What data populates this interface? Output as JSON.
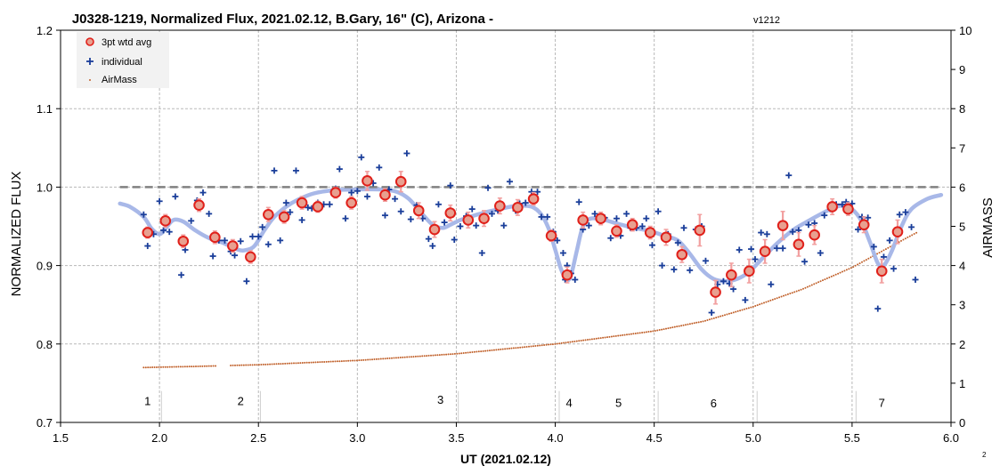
{
  "chart_data": {
    "type": "scatter",
    "title": "J0328-1219, Normalized Flux, 2021.02.12, B.Gary, 16\" (C), Arizona - ",
    "title_version": "v1212",
    "xlabel": "UT (2021.02.12)",
    "ylabel": "NORMALIZED FLUX",
    "y2label": "AIRMASS",
    "xlim": [
      1.5,
      6.0
    ],
    "ylim": [
      0.7,
      1.2
    ],
    "y2lim": [
      0,
      10
    ],
    "x_ticks": [
      "1.5",
      "2.0",
      "2.5",
      "3.0",
      "3.5",
      "4.0",
      "4.5",
      "5.0",
      "5.5",
      "6.0"
    ],
    "y_ticks": [
      "0.7",
      "0.8",
      "0.9",
      "1.0",
      "1.1",
      "1.2"
    ],
    "y2_ticks": [
      "0",
      "1",
      "2",
      "3",
      "4",
      "5",
      "6",
      "7",
      "8",
      "9",
      "10"
    ],
    "grid": true,
    "legend_position": "top-left",
    "colors": {
      "avg_fill": "#e8a090",
      "avg_edge": "#e0201a",
      "errbar": "#f2a0a0",
      "individual": "#1a3e9a",
      "airmass": "#c0602a",
      "model": "#a8b8e8",
      "reference": "#808080",
      "grid": "#b8b8b8"
    },
    "reference_line": {
      "y": 1.0,
      "x_range": [
        1.8,
        5.95
      ]
    },
    "annotations": [
      {
        "text": "1",
        "x": 1.94,
        "y": 0.722
      },
      {
        "text": "2",
        "x": 2.41,
        "y": 0.722
      },
      {
        "text": "3",
        "x": 3.42,
        "y": 0.724
      },
      {
        "text": "4",
        "x": 4.07,
        "y": 0.72
      },
      {
        "text": "5",
        "x": 4.32,
        "y": 0.72
      },
      {
        "text": "6",
        "x": 4.8,
        "y": 0.719
      },
      {
        "text": "7",
        "x": 5.65,
        "y": 0.72
      }
    ],
    "event_lines_x": [
      2.01,
      2.51,
      3.51,
      4.02,
      4.52,
      5.02,
      5.52
    ],
    "series": [
      {
        "name": "3pt wtd avg",
        "points": [
          [
            1.94,
            0.942,
            0.007
          ],
          [
            2.03,
            0.957,
            0.008
          ],
          [
            2.12,
            0.931,
            0.008
          ],
          [
            2.2,
            0.977,
            0.008
          ],
          [
            2.28,
            0.936,
            0.008
          ],
          [
            2.37,
            0.925,
            0.008
          ],
          [
            2.46,
            0.911,
            0.008
          ],
          [
            2.55,
            0.965,
            0.009
          ],
          [
            2.63,
            0.962,
            0.008
          ],
          [
            2.72,
            0.98,
            0.008
          ],
          [
            2.8,
            0.975,
            0.007
          ],
          [
            2.89,
            0.993,
            0.007
          ],
          [
            2.97,
            0.98,
            0.008
          ],
          [
            3.05,
            1.008,
            0.012
          ],
          [
            3.14,
            0.99,
            0.008
          ],
          [
            3.22,
            1.007,
            0.013
          ],
          [
            3.31,
            0.97,
            0.01
          ],
          [
            3.39,
            0.946,
            0.01
          ],
          [
            3.47,
            0.967,
            0.01
          ],
          [
            3.56,
            0.958,
            0.01
          ],
          [
            3.64,
            0.96,
            0.01
          ],
          [
            3.72,
            0.976,
            0.01
          ],
          [
            3.81,
            0.974,
            0.01
          ],
          [
            3.89,
            0.985,
            0.008
          ],
          [
            3.98,
            0.938,
            0.007
          ],
          [
            4.06,
            0.888,
            0.01
          ],
          [
            4.14,
            0.958,
            0.01
          ],
          [
            4.23,
            0.96,
            0.008
          ],
          [
            4.31,
            0.944,
            0.008
          ],
          [
            4.39,
            0.952,
            0.008
          ],
          [
            4.48,
            0.942,
            0.008
          ],
          [
            4.56,
            0.936,
            0.01
          ],
          [
            4.64,
            0.914,
            0.01
          ],
          [
            4.73,
            0.945,
            0.02
          ],
          [
            4.81,
            0.866,
            0.015
          ],
          [
            4.89,
            0.888,
            0.015
          ],
          [
            4.98,
            0.893,
            0.015
          ],
          [
            5.06,
            0.918,
            0.015
          ],
          [
            5.15,
            0.951,
            0.018
          ],
          [
            5.23,
            0.927,
            0.015
          ],
          [
            5.31,
            0.939,
            0.012
          ],
          [
            5.4,
            0.975,
            0.01
          ],
          [
            5.48,
            0.972,
            0.008
          ],
          [
            5.56,
            0.952,
            0.01
          ],
          [
            5.65,
            0.893,
            0.015
          ],
          [
            5.73,
            0.943,
            0.015
          ]
        ]
      },
      {
        "name": "individual",
        "points": [
          [
            1.92,
            0.965
          ],
          [
            1.94,
            0.925
          ],
          [
            1.97,
            0.94
          ],
          [
            2.0,
            0.982
          ],
          [
            2.02,
            0.945
          ],
          [
            2.05,
            0.943
          ],
          [
            2.08,
            0.988
          ],
          [
            2.11,
            0.888
          ],
          [
            2.13,
            0.92
          ],
          [
            2.16,
            0.957
          ],
          [
            2.19,
            0.983
          ],
          [
            2.22,
            0.993
          ],
          [
            2.25,
            0.966
          ],
          [
            2.27,
            0.912
          ],
          [
            2.3,
            0.932
          ],
          [
            2.33,
            0.932
          ],
          [
            2.36,
            0.918
          ],
          [
            2.38,
            0.913
          ],
          [
            2.41,
            0.931
          ],
          [
            2.44,
            0.88
          ],
          [
            2.47,
            0.937
          ],
          [
            2.5,
            0.937
          ],
          [
            2.52,
            0.949
          ],
          [
            2.55,
            0.927
          ],
          [
            2.58,
            1.021
          ],
          [
            2.61,
            0.932
          ],
          [
            2.64,
            0.98
          ],
          [
            2.66,
            0.968
          ],
          [
            2.69,
            1.021
          ],
          [
            2.72,
            0.958
          ],
          [
            2.75,
            0.974
          ],
          [
            2.77,
            0.973
          ],
          [
            2.8,
            0.98
          ],
          [
            2.83,
            0.978
          ],
          [
            2.86,
            0.978
          ],
          [
            2.89,
            0.998
          ],
          [
            2.91,
            1.023
          ],
          [
            2.94,
            0.96
          ],
          [
            2.97,
            0.993
          ],
          [
            3.0,
            0.995
          ],
          [
            3.02,
            1.038
          ],
          [
            3.05,
            0.988
          ],
          [
            3.08,
            1.005
          ],
          [
            3.11,
            1.025
          ],
          [
            3.14,
            0.964
          ],
          [
            3.16,
            0.997
          ],
          [
            3.19,
            0.985
          ],
          [
            3.22,
            0.969
          ],
          [
            3.25,
            1.043
          ],
          [
            3.27,
            0.959
          ],
          [
            3.3,
            0.977
          ],
          [
            3.33,
            0.96
          ],
          [
            3.36,
            0.934
          ],
          [
            3.38,
            0.925
          ],
          [
            3.41,
            0.978
          ],
          [
            3.44,
            0.955
          ],
          [
            3.47,
            1.002
          ],
          [
            3.49,
            0.933
          ],
          [
            3.52,
            0.95
          ],
          [
            3.55,
            0.963
          ],
          [
            3.58,
            0.972
          ],
          [
            3.6,
            0.951
          ],
          [
            3.63,
            0.916
          ],
          [
            3.66,
            0.999
          ],
          [
            3.68,
            0.966
          ],
          [
            3.71,
            0.97
          ],
          [
            3.74,
            0.951
          ],
          [
            3.77,
            1.007
          ],
          [
            3.8,
            0.97
          ],
          [
            3.82,
            0.979
          ],
          [
            3.85,
            0.98
          ],
          [
            3.88,
            0.994
          ],
          [
            3.91,
            0.994
          ],
          [
            3.93,
            0.962
          ],
          [
            3.96,
            0.962
          ],
          [
            3.99,
            0.943
          ],
          [
            4.01,
            0.932
          ],
          [
            4.04,
            0.916
          ],
          [
            4.05,
            0.882
          ],
          [
            4.06,
            0.9
          ],
          [
            4.08,
            0.89
          ],
          [
            4.1,
            0.882
          ],
          [
            4.12,
            0.981
          ],
          [
            4.14,
            0.946
          ],
          [
            4.17,
            0.951
          ],
          [
            4.2,
            0.966
          ],
          [
            4.22,
            0.96
          ],
          [
            4.25,
            0.961
          ],
          [
            4.28,
            0.935
          ],
          [
            4.31,
            0.96
          ],
          [
            4.33,
            0.938
          ],
          [
            4.36,
            0.966
          ],
          [
            4.38,
            0.948
          ],
          [
            4.41,
            0.948
          ],
          [
            4.44,
            0.95
          ],
          [
            4.46,
            0.96
          ],
          [
            4.49,
            0.926
          ],
          [
            4.52,
            0.969
          ],
          [
            4.54,
            0.9
          ],
          [
            4.57,
            0.94
          ],
          [
            4.6,
            0.895
          ],
          [
            4.62,
            0.929
          ],
          [
            4.65,
            0.948
          ],
          [
            4.68,
            0.894
          ],
          [
            4.71,
            0.946
          ],
          [
            4.74,
            0.95
          ],
          [
            4.76,
            0.906
          ],
          [
            4.79,
            0.84
          ],
          [
            4.82,
            0.876
          ],
          [
            4.85,
            0.88
          ],
          [
            4.88,
            0.877
          ],
          [
            4.9,
            0.87
          ],
          [
            4.93,
            0.92
          ],
          [
            4.96,
            0.856
          ],
          [
            4.99,
            0.921
          ],
          [
            5.01,
            0.908
          ],
          [
            5.04,
            0.942
          ],
          [
            5.07,
            0.94
          ],
          [
            5.09,
            0.876
          ],
          [
            5.12,
            0.922
          ],
          [
            5.15,
            0.922
          ],
          [
            5.18,
            1.015
          ],
          [
            5.2,
            0.943
          ],
          [
            5.23,
            0.945
          ],
          [
            5.26,
            0.905
          ],
          [
            5.28,
            0.952
          ],
          [
            5.31,
            0.954
          ],
          [
            5.34,
            0.916
          ],
          [
            5.36,
            0.964
          ],
          [
            5.39,
            0.972
          ],
          [
            5.42,
            0.978
          ],
          [
            5.45,
            0.978
          ],
          [
            5.47,
            0.981
          ],
          [
            5.5,
            0.979
          ],
          [
            5.53,
            0.946
          ],
          [
            5.55,
            0.962
          ],
          [
            5.58,
            0.961
          ],
          [
            5.61,
            0.924
          ],
          [
            5.63,
            0.845
          ],
          [
            5.66,
            0.911
          ],
          [
            5.69,
            0.932
          ],
          [
            5.71,
            0.896
          ],
          [
            5.74,
            0.965
          ],
          [
            5.77,
            0.968
          ],
          [
            5.8,
            0.949
          ],
          [
            5.82,
            0.882
          ]
        ]
      },
      {
        "name": "AirMass",
        "axis": "right",
        "x_range": [
          1.92,
          5.83
        ],
        "gap": [
          2.29,
          2.35
        ],
        "samples": [
          [
            1.92,
            1.4
          ],
          [
            2.2,
            1.43
          ],
          [
            2.5,
            1.47
          ],
          [
            3.0,
            1.58
          ],
          [
            3.5,
            1.75
          ],
          [
            4.0,
            2.0
          ],
          [
            4.5,
            2.33
          ],
          [
            4.75,
            2.58
          ],
          [
            5.0,
            2.95
          ],
          [
            5.25,
            3.4
          ],
          [
            5.5,
            3.95
          ],
          [
            5.7,
            4.5
          ],
          [
            5.83,
            4.85
          ]
        ]
      },
      {
        "name": "model",
        "legend": false,
        "samples": [
          [
            1.8,
            0.979
          ],
          [
            1.85,
            0.975
          ],
          [
            1.92,
            0.962
          ],
          [
            1.96,
            0.947
          ],
          [
            2.0,
            0.94
          ],
          [
            2.03,
            0.947
          ],
          [
            2.07,
            0.958
          ],
          [
            2.12,
            0.956
          ],
          [
            2.18,
            0.945
          ],
          [
            2.25,
            0.935
          ],
          [
            2.32,
            0.929
          ],
          [
            2.4,
            0.92
          ],
          [
            2.44,
            0.92
          ],
          [
            2.48,
            0.925
          ],
          [
            2.53,
            0.945
          ],
          [
            2.58,
            0.962
          ],
          [
            2.64,
            0.975
          ],
          [
            2.7,
            0.984
          ],
          [
            2.78,
            0.992
          ],
          [
            2.88,
            0.996
          ],
          [
            3.0,
            0.997
          ],
          [
            3.12,
            0.997
          ],
          [
            3.2,
            0.994
          ],
          [
            3.26,
            0.985
          ],
          [
            3.32,
            0.968
          ],
          [
            3.38,
            0.952
          ],
          [
            3.43,
            0.948
          ],
          [
            3.47,
            0.952
          ],
          [
            3.52,
            0.958
          ],
          [
            3.58,
            0.963
          ],
          [
            3.65,
            0.968
          ],
          [
            3.72,
            0.972
          ],
          [
            3.8,
            0.976
          ],
          [
            3.88,
            0.975
          ],
          [
            3.93,
            0.965
          ],
          [
            3.97,
            0.945
          ],
          [
            4.0,
            0.92
          ],
          [
            4.03,
            0.895
          ],
          [
            4.06,
            0.882
          ],
          [
            4.08,
            0.888
          ],
          [
            4.11,
            0.92
          ],
          [
            4.14,
            0.95
          ],
          [
            4.18,
            0.96
          ],
          [
            4.25,
            0.958
          ],
          [
            4.32,
            0.953
          ],
          [
            4.4,
            0.948
          ],
          [
            4.48,
            0.944
          ],
          [
            4.55,
            0.938
          ],
          [
            4.62,
            0.932
          ],
          [
            4.68,
            0.915
          ],
          [
            4.74,
            0.895
          ],
          [
            4.8,
            0.883
          ],
          [
            4.86,
            0.88
          ],
          [
            4.92,
            0.883
          ],
          [
            4.98,
            0.892
          ],
          [
            5.05,
            0.91
          ],
          [
            5.12,
            0.928
          ],
          [
            5.2,
            0.945
          ],
          [
            5.28,
            0.957
          ],
          [
            5.36,
            0.968
          ],
          [
            5.42,
            0.975
          ],
          [
            5.48,
            0.975
          ],
          [
            5.54,
            0.96
          ],
          [
            5.59,
            0.93
          ],
          [
            5.63,
            0.903
          ],
          [
            5.66,
            0.9
          ],
          [
            5.7,
            0.918
          ],
          [
            5.75,
            0.95
          ],
          [
            5.8,
            0.972
          ],
          [
            5.88,
            0.985
          ],
          [
            5.95,
            0.99
          ]
        ]
      }
    ]
  },
  "corner_mark": "2"
}
